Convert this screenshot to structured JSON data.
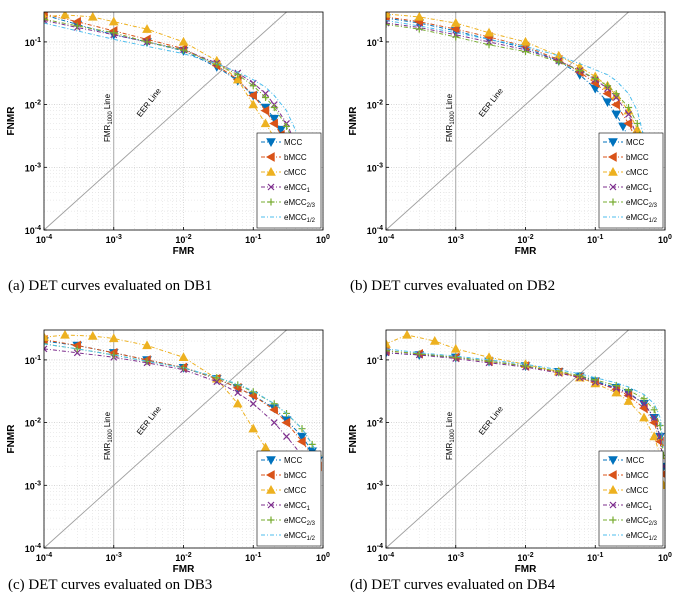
{
  "figure": {
    "panels": [
      {
        "caption": "(a) DET curves evaluated on DB1"
      },
      {
        "caption": "(b) DET curves evaluated on DB2"
      },
      {
        "caption": "(c) DET curves evaluated on DB3"
      },
      {
        "caption": "(d) DET curves evaluated on DB4"
      }
    ]
  },
  "chart_data": [
    {
      "type": "line",
      "title": "",
      "xlabel": "FMR",
      "ylabel": "FNMR",
      "xscale": "log",
      "yscale": "log",
      "xlim": [
        0.0001,
        1
      ],
      "ylim": [
        0.0001,
        0.3
      ],
      "xticks": [
        "10^-4",
        "10^-3",
        "10^-2",
        "10^-1",
        "10^0"
      ],
      "yticks": [
        "10^-4",
        "10^-3",
        "10^-2",
        "10^-1"
      ],
      "grid": true,
      "legend_position": "bottom-right",
      "annotations": [
        {
          "text": "FMR1000 Line",
          "main": "FMR",
          "sub": "1000",
          "rest": " Line",
          "x": 0.001
        },
        {
          "text": "EER Line"
        }
      ],
      "series": [
        {
          "name": "MCC",
          "sub": "",
          "color": "#0072BD",
          "marker": "triangle-down",
          "x": [
            0.0001,
            0.0003,
            0.001,
            0.003,
            0.01,
            0.03,
            0.06,
            0.1,
            0.15,
            0.2,
            0.25,
            0.3,
            0.35
          ],
          "y": [
            0.27,
            0.19,
            0.13,
            0.1,
            0.072,
            0.04,
            0.024,
            0.014,
            0.009,
            0.006,
            0.004,
            0.0028,
            0.002
          ]
        },
        {
          "name": "bMCC",
          "sub": "",
          "color": "#D95319",
          "marker": "triangle-left",
          "x": [
            0.0001,
            0.0003,
            0.001,
            0.003,
            0.01,
            0.03,
            0.06,
            0.1,
            0.15,
            0.2,
            0.25,
            0.3
          ],
          "y": [
            0.28,
            0.21,
            0.15,
            0.11,
            0.078,
            0.042,
            0.025,
            0.014,
            0.008,
            0.005,
            0.0033,
            0.002
          ]
        },
        {
          "name": "cMCC",
          "sub": "",
          "color": "#EDB120",
          "marker": "triangle-up",
          "x": [
            0.0001,
            0.0002,
            0.0005,
            0.001,
            0.003,
            0.01,
            0.03,
            0.06,
            0.1,
            0.15,
            0.2,
            0.25
          ],
          "y": [
            0.25,
            0.27,
            0.25,
            0.21,
            0.16,
            0.1,
            0.05,
            0.025,
            0.01,
            0.005,
            0.003,
            0.0018
          ]
        },
        {
          "name": "eMCC",
          "sub": "1",
          "color": "#7E2F8E",
          "marker": "x",
          "x": [
            0.0001,
            0.0003,
            0.001,
            0.003,
            0.01,
            0.03,
            0.06,
            0.1,
            0.15,
            0.2,
            0.3,
            0.4
          ],
          "y": [
            0.22,
            0.17,
            0.13,
            0.1,
            0.075,
            0.046,
            0.032,
            0.022,
            0.015,
            0.01,
            0.005,
            0.0025
          ]
        },
        {
          "name": "eMCC",
          "sub": "2/3",
          "color": "#77AC30",
          "marker": "plus",
          "x": [
            0.0001,
            0.0003,
            0.001,
            0.003,
            0.01,
            0.03,
            0.06,
            0.1,
            0.15,
            0.2,
            0.3,
            0.4
          ],
          "y": [
            0.23,
            0.18,
            0.14,
            0.1,
            0.074,
            0.044,
            0.03,
            0.02,
            0.013,
            0.009,
            0.0045,
            0.0022
          ]
        },
        {
          "name": "eMCC",
          "sub": "1/2",
          "color": "#4DBEEE",
          "marker": "none",
          "x": [
            0.0001,
            0.0003,
            0.001,
            0.003,
            0.01,
            0.03,
            0.06,
            0.1,
            0.15,
            0.2,
            0.3,
            0.4,
            0.5
          ],
          "y": [
            0.2,
            0.15,
            0.11,
            0.085,
            0.065,
            0.045,
            0.033,
            0.025,
            0.019,
            0.014,
            0.008,
            0.004,
            0.0018
          ]
        }
      ]
    },
    {
      "type": "line",
      "title": "",
      "xlabel": "FMR",
      "ylabel": "FNMR",
      "xscale": "log",
      "yscale": "log",
      "xlim": [
        0.0001,
        1
      ],
      "ylim": [
        0.0001,
        0.3
      ],
      "xticks": [
        "10^-4",
        "10^-3",
        "10^-2",
        "10^-1",
        "10^0"
      ],
      "yticks": [
        "10^-4",
        "10^-3",
        "10^-2",
        "10^-1"
      ],
      "grid": true,
      "legend_position": "bottom-right",
      "annotations": [
        {
          "text": "FMR1000 Line",
          "main": "FMR",
          "sub": "1000",
          "rest": " Line",
          "x": 0.001
        },
        {
          "text": "EER Line"
        }
      ],
      "series": [
        {
          "name": "MCC",
          "sub": "",
          "color": "#0072BD",
          "marker": "triangle-down",
          "x": [
            0.0001,
            0.0003,
            0.001,
            0.003,
            0.01,
            0.03,
            0.06,
            0.1,
            0.15,
            0.2,
            0.25,
            0.3
          ],
          "y": [
            0.24,
            0.2,
            0.15,
            0.11,
            0.08,
            0.05,
            0.03,
            0.018,
            0.011,
            0.007,
            0.0045,
            0.003
          ]
        },
        {
          "name": "bMCC",
          "sub": "",
          "color": "#D95319",
          "marker": "triangle-left",
          "x": [
            0.0001,
            0.0003,
            0.001,
            0.003,
            0.01,
            0.03,
            0.06,
            0.1,
            0.15,
            0.2,
            0.3,
            0.4
          ],
          "y": [
            0.25,
            0.21,
            0.16,
            0.12,
            0.085,
            0.052,
            0.033,
            0.022,
            0.015,
            0.01,
            0.005,
            0.0025
          ]
        },
        {
          "name": "cMCC",
          "sub": "",
          "color": "#EDB120",
          "marker": "triangle-up",
          "x": [
            0.0001,
            0.0003,
            0.001,
            0.003,
            0.01,
            0.03,
            0.06,
            0.1,
            0.15,
            0.2,
            0.3,
            0.4,
            0.5
          ],
          "y": [
            0.28,
            0.25,
            0.2,
            0.14,
            0.1,
            0.06,
            0.04,
            0.028,
            0.02,
            0.014,
            0.008,
            0.004,
            0.002
          ]
        },
        {
          "name": "eMCC",
          "sub": "1",
          "color": "#7E2F8E",
          "marker": "x",
          "x": [
            0.0001,
            0.0003,
            0.001,
            0.003,
            0.01,
            0.03,
            0.06,
            0.1,
            0.15,
            0.2,
            0.3,
            0.4
          ],
          "y": [
            0.2,
            0.17,
            0.13,
            0.1,
            0.075,
            0.05,
            0.035,
            0.025,
            0.018,
            0.013,
            0.007,
            0.003
          ]
        },
        {
          "name": "eMCC",
          "sub": "2/3",
          "color": "#77AC30",
          "marker": "plus",
          "x": [
            0.0001,
            0.0003,
            0.001,
            0.003,
            0.01,
            0.03,
            0.06,
            0.1,
            0.15,
            0.2,
            0.3,
            0.4,
            0.5
          ],
          "y": [
            0.19,
            0.16,
            0.12,
            0.09,
            0.07,
            0.048,
            0.035,
            0.026,
            0.02,
            0.015,
            0.009,
            0.005,
            0.002
          ]
        },
        {
          "name": "eMCC",
          "sub": "1/2",
          "color": "#4DBEEE",
          "marker": "none",
          "x": [
            0.0001,
            0.0003,
            0.001,
            0.003,
            0.01,
            0.03,
            0.06,
            0.1,
            0.15,
            0.2,
            0.3,
            0.4,
            0.5
          ],
          "y": [
            0.22,
            0.18,
            0.14,
            0.11,
            0.085,
            0.06,
            0.045,
            0.036,
            0.03,
            0.024,
            0.015,
            0.008,
            0.003
          ]
        }
      ]
    },
    {
      "type": "line",
      "title": "",
      "xlabel": "FMR",
      "ylabel": "FNMR",
      "xscale": "log",
      "yscale": "log",
      "xlim": [
        0.0001,
        1
      ],
      "ylim": [
        0.0001,
        0.3
      ],
      "xticks": [
        "10^-4",
        "10^-3",
        "10^-2",
        "10^-1",
        "10^0"
      ],
      "yticks": [
        "10^-4",
        "10^-3",
        "10^-2",
        "10^-1"
      ],
      "grid": true,
      "legend_position": "bottom-right",
      "annotations": [
        {
          "text": "FMR1000 Line",
          "main": "FMR",
          "sub": "1000",
          "rest": " Line",
          "x": 0.001
        },
        {
          "text": "EER Line"
        }
      ],
      "series": [
        {
          "name": "MCC",
          "sub": "",
          "color": "#0072BD",
          "marker": "triangle-down",
          "x": [
            0.0001,
            0.0003,
            0.001,
            0.003,
            0.01,
            0.03,
            0.06,
            0.1,
            0.2,
            0.3,
            0.5,
            0.7,
            0.85
          ],
          "y": [
            0.2,
            0.17,
            0.13,
            0.1,
            0.075,
            0.05,
            0.036,
            0.027,
            0.017,
            0.011,
            0.006,
            0.0035,
            0.0025
          ]
        },
        {
          "name": "bMCC",
          "sub": "",
          "color": "#D95319",
          "marker": "triangle-left",
          "x": [
            0.0001,
            0.0003,
            0.001,
            0.003,
            0.01,
            0.03,
            0.06,
            0.1,
            0.2,
            0.3,
            0.5,
            0.7,
            0.85
          ],
          "y": [
            0.21,
            0.17,
            0.13,
            0.1,
            0.076,
            0.05,
            0.036,
            0.027,
            0.016,
            0.01,
            0.005,
            0.003,
            0.002
          ]
        },
        {
          "name": "cMCC",
          "sub": "",
          "color": "#EDB120",
          "marker": "triangle-up",
          "x": [
            0.0001,
            0.0002,
            0.0005,
            0.001,
            0.003,
            0.01,
            0.03,
            0.06,
            0.1,
            0.15,
            0.2,
            0.3
          ],
          "y": [
            0.23,
            0.25,
            0.24,
            0.22,
            0.17,
            0.11,
            0.05,
            0.02,
            0.008,
            0.004,
            0.0025,
            0.0017
          ]
        },
        {
          "name": "eMCC",
          "sub": "1",
          "color": "#7E2F8E",
          "marker": "x",
          "x": [
            0.0001,
            0.0003,
            0.001,
            0.003,
            0.01,
            0.03,
            0.06,
            0.1,
            0.2,
            0.3,
            0.5,
            0.7
          ],
          "y": [
            0.15,
            0.13,
            0.11,
            0.09,
            0.07,
            0.045,
            0.03,
            0.02,
            0.01,
            0.006,
            0.003,
            0.002
          ]
        },
        {
          "name": "eMCC",
          "sub": "2/3",
          "color": "#77AC30",
          "marker": "plus",
          "x": [
            0.0001,
            0.0003,
            0.001,
            0.003,
            0.01,
            0.03,
            0.06,
            0.1,
            0.2,
            0.3,
            0.5,
            0.7,
            0.85
          ],
          "y": [
            0.18,
            0.15,
            0.12,
            0.095,
            0.075,
            0.052,
            0.04,
            0.031,
            0.02,
            0.014,
            0.008,
            0.0045,
            0.003
          ]
        },
        {
          "name": "eMCC",
          "sub": "1/2",
          "color": "#4DBEEE",
          "marker": "none",
          "x": [
            0.0001,
            0.0003,
            0.001,
            0.003,
            0.01,
            0.03,
            0.06,
            0.1,
            0.2,
            0.3,
            0.5,
            0.7,
            0.85
          ],
          "y": [
            0.18,
            0.15,
            0.12,
            0.095,
            0.075,
            0.053,
            0.041,
            0.032,
            0.02,
            0.014,
            0.008,
            0.0045,
            0.003
          ]
        }
      ]
    },
    {
      "type": "line",
      "title": "",
      "xlabel": "FMR",
      "ylabel": "FNMR",
      "xscale": "log",
      "yscale": "log",
      "xlim": [
        0.0001,
        1
      ],
      "ylim": [
        0.0001,
        0.3
      ],
      "xticks": [
        "10^-4",
        "10^-3",
        "10^-2",
        "10^-1",
        "10^0"
      ],
      "yticks": [
        "10^-4",
        "10^-3",
        "10^-2",
        "10^-1"
      ],
      "grid": true,
      "legend_position": "bottom-right",
      "annotations": [
        {
          "text": "FMR1000 Line",
          "main": "FMR",
          "sub": "1000",
          "rest": " Line",
          "x": 0.001
        },
        {
          "text": "EER Line"
        }
      ],
      "series": [
        {
          "name": "MCC",
          "sub": "",
          "color": "#0072BD",
          "marker": "triangle-down",
          "x": [
            0.0001,
            0.0003,
            0.001,
            0.003,
            0.01,
            0.03,
            0.06,
            0.1,
            0.2,
            0.3,
            0.5,
            0.7,
            0.85,
            0.95
          ],
          "y": [
            0.13,
            0.12,
            0.11,
            0.095,
            0.08,
            0.065,
            0.055,
            0.046,
            0.036,
            0.03,
            0.02,
            0.012,
            0.006,
            0.002
          ]
        },
        {
          "name": "bMCC",
          "sub": "",
          "color": "#D95319",
          "marker": "triangle-left",
          "x": [
            0.0001,
            0.0003,
            0.001,
            0.003,
            0.01,
            0.03,
            0.06,
            0.1,
            0.2,
            0.3,
            0.5,
            0.7,
            0.85,
            0.95
          ],
          "y": [
            0.14,
            0.125,
            0.11,
            0.095,
            0.08,
            0.064,
            0.053,
            0.044,
            0.034,
            0.027,
            0.017,
            0.01,
            0.005,
            0.0015
          ]
        },
        {
          "name": "cMCC",
          "sub": "",
          "color": "#EDB120",
          "marker": "triangle-up",
          "x": [
            0.0001,
            0.0002,
            0.0005,
            0.001,
            0.003,
            0.01,
            0.03,
            0.06,
            0.1,
            0.2,
            0.3,
            0.5,
            0.7,
            0.85,
            0.95
          ],
          "y": [
            0.18,
            0.25,
            0.2,
            0.15,
            0.11,
            0.085,
            0.065,
            0.052,
            0.042,
            0.03,
            0.022,
            0.012,
            0.006,
            0.003,
            0.001
          ]
        },
        {
          "name": "eMCC",
          "sub": "1",
          "color": "#7E2F8E",
          "marker": "x",
          "x": [
            0.0001,
            0.0003,
            0.001,
            0.003,
            0.01,
            0.03,
            0.06,
            0.1,
            0.2,
            0.3,
            0.5,
            0.7,
            0.85,
            0.95
          ],
          "y": [
            0.13,
            0.12,
            0.105,
            0.09,
            0.077,
            0.062,
            0.052,
            0.044,
            0.035,
            0.029,
            0.02,
            0.012,
            0.006,
            0.002
          ]
        },
        {
          "name": "eMCC",
          "sub": "2/3",
          "color": "#77AC30",
          "marker": "plus",
          "x": [
            0.0001,
            0.0003,
            0.001,
            0.003,
            0.01,
            0.03,
            0.06,
            0.1,
            0.2,
            0.3,
            0.5,
            0.7,
            0.85,
            0.95
          ],
          "y": [
            0.14,
            0.125,
            0.11,
            0.095,
            0.08,
            0.066,
            0.056,
            0.048,
            0.039,
            0.033,
            0.024,
            0.016,
            0.009,
            0.003
          ]
        },
        {
          "name": "eMCC",
          "sub": "1/2",
          "color": "#4DBEEE",
          "marker": "none",
          "x": [
            0.0001,
            0.0003,
            0.001,
            0.003,
            0.01,
            0.03,
            0.06,
            0.1,
            0.2,
            0.3,
            0.5,
            0.7,
            0.85,
            0.95
          ],
          "y": [
            0.15,
            0.13,
            0.115,
            0.1,
            0.085,
            0.07,
            0.06,
            0.052,
            0.043,
            0.037,
            0.028,
            0.02,
            0.012,
            0.004
          ]
        }
      ]
    }
  ]
}
